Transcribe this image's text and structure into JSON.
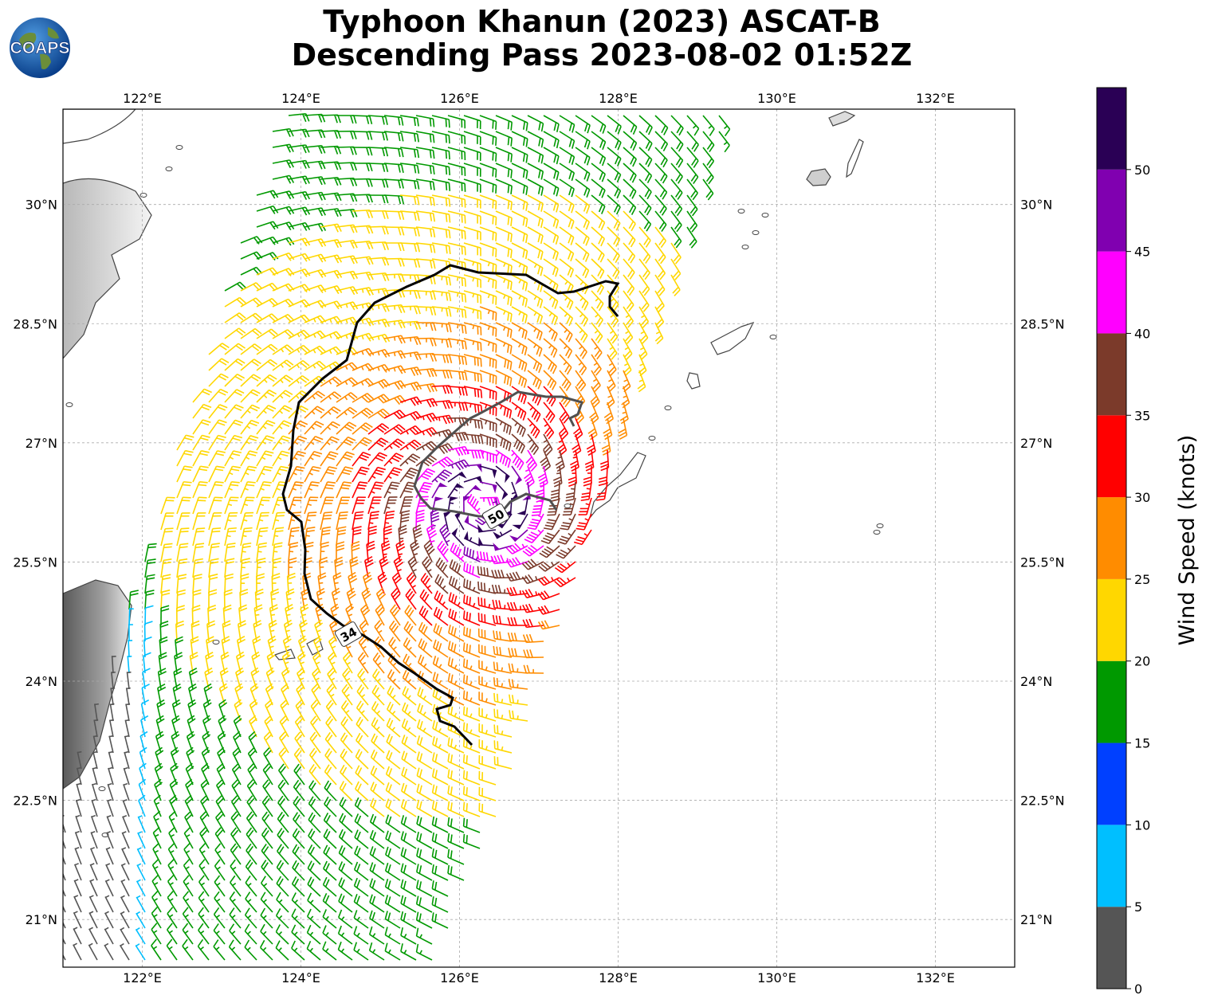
{
  "header": {
    "title_line1": "Typhoon Khanun (2023) ASCAT-B",
    "title_line2": "Descending Pass 2023-08-02 01:52Z",
    "logo_text": "COAPS"
  },
  "map": {
    "lon_range": [
      121.0,
      133.0
    ],
    "lat_range": [
      20.4,
      31.2
    ],
    "lon_ticks": [
      {
        "value": 122,
        "label": "122°E"
      },
      {
        "value": 124,
        "label": "124°E"
      },
      {
        "value": 126,
        "label": "126°E"
      },
      {
        "value": 128,
        "label": "128°E"
      },
      {
        "value": 130,
        "label": "130°E"
      },
      {
        "value": 132,
        "label": "132°E"
      }
    ],
    "lat_ticks": [
      {
        "value": 21.0,
        "label": "21°N"
      },
      {
        "value": 22.5,
        "label": "22.5°N"
      },
      {
        "value": 24.0,
        "label": "24°N"
      },
      {
        "value": 25.5,
        "label": "25.5°N"
      },
      {
        "value": 27.0,
        "label": "27°N"
      },
      {
        "value": 28.5,
        "label": "28.5°N"
      },
      {
        "value": 30.0,
        "label": "30°N"
      }
    ],
    "grid": true,
    "land_color": "#ffffff",
    "coast_color": "#444444"
  },
  "chart_data": {
    "type": "wind-barb",
    "storm_center": {
      "lon": 126.3,
      "lat": 26.2
    },
    "contours": [
      {
        "label": "34",
        "value_kt": 34,
        "color": "#000000"
      },
      {
        "label": "50",
        "value_kt": 50,
        "color": "#505050"
      }
    ]
  },
  "colorbar": {
    "title": "Wind Speed (knots)",
    "min": 0,
    "max": 55,
    "bins": [
      {
        "from": 0,
        "to": 5,
        "color": "#555555"
      },
      {
        "from": 5,
        "to": 10,
        "color": "#00bfff"
      },
      {
        "from": 10,
        "to": 15,
        "color": "#0040ff"
      },
      {
        "from": 15,
        "to": 20,
        "color": "#009900"
      },
      {
        "from": 20,
        "to": 25,
        "color": "#ffd700"
      },
      {
        "from": 25,
        "to": 30,
        "color": "#ff8c00"
      },
      {
        "from": 30,
        "to": 35,
        "color": "#ff0000"
      },
      {
        "from": 35,
        "to": 40,
        "color": "#7b3a2a"
      },
      {
        "from": 40,
        "to": 45,
        "color": "#ff00ff"
      },
      {
        "from": 45,
        "to": 50,
        "color": "#8000b0"
      },
      {
        "from": 50,
        "to": 55,
        "color": "#2a0055"
      }
    ],
    "tick_labels": [
      "0",
      "5",
      "10",
      "15",
      "20",
      "25",
      "30",
      "35",
      "40",
      "45",
      "50"
    ]
  }
}
